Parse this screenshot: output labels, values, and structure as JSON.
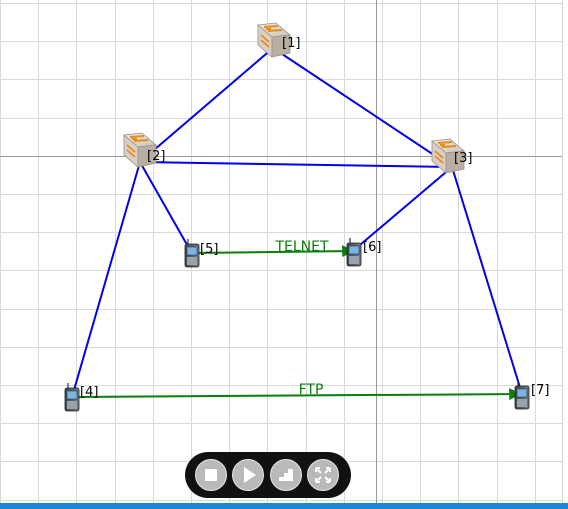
{
  "topology": {
    "nodes": [
      {
        "id": 1,
        "label": "[1]",
        "type": "router"
      },
      {
        "id": 2,
        "label": "[2]",
        "type": "router"
      },
      {
        "id": 3,
        "label": "[3]",
        "type": "router"
      },
      {
        "id": 4,
        "label": "[4]",
        "type": "handset"
      },
      {
        "id": 5,
        "label": "[5]",
        "type": "handset"
      },
      {
        "id": 6,
        "label": "[6]",
        "type": "handset"
      },
      {
        "id": 7,
        "label": "[7]",
        "type": "handset"
      }
    ],
    "links": [
      {
        "from": 1,
        "to": 2
      },
      {
        "from": 1,
        "to": 3
      },
      {
        "from": 2,
        "to": 3
      },
      {
        "from": 2,
        "to": 5
      },
      {
        "from": 2,
        "to": 4
      },
      {
        "from": 3,
        "to": 6
      },
      {
        "from": 3,
        "to": 7
      }
    ],
    "flows": [
      {
        "from": 5,
        "to": 6,
        "label": "TELNET"
      },
      {
        "from": 4,
        "to": 7,
        "label": "FTP"
      }
    ]
  },
  "colors": {
    "link": "#0000ee",
    "flow": "#0a7d0a",
    "grid": "#d9d9d9",
    "grid_major": "#9a9a9a"
  },
  "toolbar": {
    "buttons": [
      {
        "name": "stop-button",
        "icon": "stop-icon"
      },
      {
        "name": "play-button",
        "icon": "play-icon"
      },
      {
        "name": "step-button",
        "icon": "step-icon"
      },
      {
        "name": "fullscreen-button",
        "icon": "fullscreen-icon"
      }
    ]
  }
}
